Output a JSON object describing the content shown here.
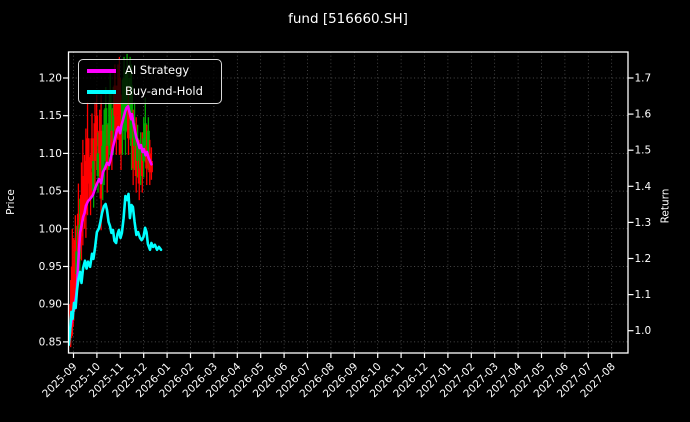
{
  "chart_data": {
    "type": "candlestick+line",
    "title": "fund [516660.SH]",
    "x_axis": {
      "unit": "month",
      "tick_labels": [
        "2025-09",
        "2025-10",
        "2025-11",
        "2025-12",
        "2026-01",
        "2026-02",
        "2026-03",
        "2026-04",
        "2026-05",
        "2026-06",
        "2026-07",
        "2026-08",
        "2026-09",
        "2026-10",
        "2026-11",
        "2026-12",
        "2027-01",
        "2027-02",
        "2027-03",
        "2027-04",
        "2027-05",
        "2027-06",
        "2027-07",
        "2027-08"
      ]
    },
    "left_axis": {
      "label": "Price",
      "tick_values": [
        0.85,
        0.9,
        0.95,
        1.0,
        1.05,
        1.1,
        1.15,
        1.2
      ],
      "tick_labels": [
        "0.85",
        "0.90",
        "0.95",
        "1.00",
        "1.05",
        "1.10",
        "1.15",
        "1.20"
      ],
      "range": [
        0.834,
        1.235
      ]
    },
    "right_axis": {
      "label": "Return",
      "tick_values": [
        1.0,
        1.1,
        1.2,
        1.3,
        1.4,
        1.5,
        1.6,
        1.7
      ],
      "tick_labels": [
        "1.0",
        "1.1",
        "1.2",
        "1.3",
        "1.4",
        "1.5",
        "1.6",
        "1.7"
      ],
      "range": [
        0.918,
        1.772
      ]
    },
    "grid": true,
    "legend": [
      {
        "label": "AI Strategy",
        "color": "#ff00ff"
      },
      {
        "label": "Buy-and-Hold",
        "color": "#00ffff"
      }
    ],
    "series": [
      {
        "name": "AI Strategy",
        "axis": "right",
        "color": "#ff00ff",
        "width": 2.6,
        "points": [
          [
            -0.2,
            0.969
          ],
          [
            -0.15,
            1.002
          ],
          [
            -0.06,
            1.036
          ],
          [
            0.02,
            1.063
          ],
          [
            0.11,
            1.096
          ],
          [
            0.15,
            1.119
          ],
          [
            0.19,
            1.174
          ],
          [
            0.24,
            1.229
          ],
          [
            0.28,
            1.271
          ],
          [
            0.34,
            1.29
          ],
          [
            0.41,
            1.315
          ],
          [
            0.47,
            1.326
          ],
          [
            0.53,
            1.346
          ],
          [
            0.62,
            1.359
          ],
          [
            0.71,
            1.365
          ],
          [
            0.83,
            1.376
          ],
          [
            0.96,
            1.401
          ],
          [
            1.09,
            1.42
          ],
          [
            1.18,
            1.409
          ],
          [
            1.26,
            1.44
          ],
          [
            1.35,
            1.451
          ],
          [
            1.43,
            1.465
          ],
          [
            1.52,
            1.459
          ],
          [
            1.6,
            1.478
          ],
          [
            1.69,
            1.509
          ],
          [
            1.77,
            1.531
          ],
          [
            1.86,
            1.556
          ],
          [
            1.92,
            1.564
          ],
          [
            1.99,
            1.547
          ],
          [
            2.05,
            1.57
          ],
          [
            2.12,
            1.586
          ],
          [
            2.2,
            1.606
          ],
          [
            2.26,
            1.617
          ],
          [
            2.33,
            1.622
          ],
          [
            2.39,
            1.606
          ],
          [
            2.46,
            1.586
          ],
          [
            2.5,
            1.6
          ],
          [
            2.56,
            1.575
          ],
          [
            2.63,
            1.553
          ],
          [
            2.69,
            1.534
          ],
          [
            2.76,
            1.52
          ],
          [
            2.82,
            1.506
          ],
          [
            2.88,
            1.514
          ],
          [
            2.95,
            1.495
          ],
          [
            3.01,
            1.503
          ],
          [
            3.08,
            1.486
          ],
          [
            3.14,
            1.495
          ],
          [
            3.21,
            1.478
          ],
          [
            3.27,
            1.47
          ],
          [
            3.33,
            1.461
          ]
        ]
      },
      {
        "name": "Buy-and-Hold",
        "axis": "right",
        "color": "#00ffff",
        "width": 2.6,
        "points": [
          [
            -0.2,
            0.961
          ],
          [
            -0.15,
            0.997
          ],
          [
            -0.09,
            1.052
          ],
          [
            -0.04,
            1.033
          ],
          [
            0.02,
            1.077
          ],
          [
            0.09,
            1.063
          ],
          [
            0.15,
            1.113
          ],
          [
            0.21,
            1.143
          ],
          [
            0.28,
            1.163
          ],
          [
            0.34,
            1.132
          ],
          [
            0.41,
            1.174
          ],
          [
            0.49,
            1.194
          ],
          [
            0.56,
            1.172
          ],
          [
            0.62,
            1.191
          ],
          [
            0.71,
            1.177
          ],
          [
            0.79,
            1.213
          ],
          [
            0.85,
            1.199
          ],
          [
            0.92,
            1.229
          ],
          [
            1.0,
            1.273
          ],
          [
            1.09,
            1.284
          ],
          [
            1.15,
            1.301
          ],
          [
            1.22,
            1.326
          ],
          [
            1.3,
            1.345
          ],
          [
            1.37,
            1.351
          ],
          [
            1.43,
            1.334
          ],
          [
            1.5,
            1.301
          ],
          [
            1.56,
            1.29
          ],
          [
            1.62,
            1.271
          ],
          [
            1.69,
            1.279
          ],
          [
            1.75,
            1.249
          ],
          [
            1.82,
            1.243
          ],
          [
            1.88,
            1.268
          ],
          [
            1.94,
            1.279
          ],
          [
            2.01,
            1.257
          ],
          [
            2.07,
            1.271
          ],
          [
            2.14,
            1.312
          ],
          [
            2.22,
            1.373
          ],
          [
            2.29,
            1.362
          ],
          [
            2.35,
            1.379
          ],
          [
            2.41,
            1.312
          ],
          [
            2.48,
            1.348
          ],
          [
            2.54,
            1.343
          ],
          [
            2.61,
            1.301
          ],
          [
            2.69,
            1.265
          ],
          [
            2.76,
            1.273
          ],
          [
            2.84,
            1.257
          ],
          [
            2.91,
            1.251
          ],
          [
            2.99,
            1.26
          ],
          [
            3.06,
            1.285
          ],
          [
            3.12,
            1.273
          ],
          [
            3.18,
            1.24
          ],
          [
            3.27,
            1.224
          ],
          [
            3.33,
            1.243
          ],
          [
            3.4,
            1.232
          ],
          [
            3.48,
            1.238
          ],
          [
            3.57,
            1.224
          ],
          [
            3.65,
            1.232
          ],
          [
            3.74,
            1.224
          ]
        ]
      }
    ],
    "candles": {
      "axis": "left",
      "up_color": "#00aa00",
      "down_color": "#ff0000",
      "note": "entries: [x_months, low, body_low, body_high, high, direction]",
      "ohlc": [
        [
          -0.12,
          0.843,
          0.855,
          0.9,
          0.932,
          "r"
        ],
        [
          -0.05,
          0.858,
          0.87,
          0.95,
          1.0,
          "r"
        ],
        [
          0.01,
          0.878,
          0.89,
          0.955,
          0.988,
          "r"
        ],
        [
          0.08,
          0.9,
          0.93,
          0.985,
          1.018,
          "r"
        ],
        [
          0.14,
          0.92,
          0.94,
          0.97,
          1.004,
          "g"
        ],
        [
          0.21,
          0.948,
          0.97,
          1.02,
          1.06,
          "r"
        ],
        [
          0.27,
          0.93,
          0.96,
          1.005,
          1.04,
          "g"
        ],
        [
          0.34,
          0.958,
          0.99,
          1.045,
          1.088,
          "r"
        ],
        [
          0.4,
          0.978,
          1.01,
          1.07,
          1.118,
          "r"
        ],
        [
          0.47,
          1.0,
          1.03,
          1.07,
          1.098,
          "r"
        ],
        [
          0.53,
          0.988,
          1.02,
          1.09,
          1.133,
          "r"
        ],
        [
          0.6,
          1.018,
          1.06,
          1.12,
          1.168,
          "r"
        ],
        [
          0.66,
          1.038,
          1.06,
          1.095,
          1.12,
          "r"
        ],
        [
          0.73,
          1.018,
          1.04,
          1.075,
          1.098,
          "r"
        ],
        [
          0.79,
          1.048,
          1.08,
          1.12,
          1.153,
          "r"
        ],
        [
          0.86,
          1.028,
          1.05,
          1.09,
          1.118,
          "g"
        ],
        [
          0.92,
          1.058,
          1.09,
          1.14,
          1.168,
          "r"
        ],
        [
          0.99,
          1.078,
          1.11,
          1.15,
          1.178,
          "r"
        ],
        [
          1.05,
          1.048,
          1.07,
          1.1,
          1.128,
          "g"
        ],
        [
          1.12,
          1.068,
          1.1,
          1.13,
          1.158,
          "r"
        ],
        [
          1.18,
          0.998,
          1.04,
          1.13,
          1.178,
          "r"
        ],
        [
          1.25,
          1.038,
          1.07,
          1.11,
          1.138,
          "g"
        ],
        [
          1.31,
          1.058,
          1.09,
          1.13,
          1.158,
          "g"
        ],
        [
          1.38,
          1.078,
          1.11,
          1.16,
          1.188,
          "g"
        ],
        [
          1.44,
          1.048,
          1.08,
          1.11,
          1.138,
          "r"
        ],
        [
          1.51,
          1.078,
          1.11,
          1.14,
          1.168,
          "g"
        ],
        [
          1.57,
          1.098,
          1.13,
          1.18,
          1.208,
          "g"
        ],
        [
          1.64,
          1.078,
          1.1,
          1.13,
          1.158,
          "r"
        ],
        [
          1.7,
          1.098,
          1.13,
          1.16,
          1.188,
          "g"
        ],
        [
          1.77,
          1.118,
          1.15,
          1.19,
          1.218,
          "r"
        ],
        [
          1.83,
          1.098,
          1.12,
          1.15,
          1.178,
          "r"
        ],
        [
          1.9,
          1.118,
          1.15,
          1.19,
          1.218,
          "r"
        ],
        [
          1.96,
          1.098,
          1.13,
          1.2,
          1.228,
          "r"
        ],
        [
          2.03,
          1.078,
          1.1,
          1.15,
          1.178,
          "r"
        ],
        [
          2.09,
          1.098,
          1.13,
          1.17,
          1.198,
          "g"
        ],
        [
          2.16,
          1.118,
          1.15,
          1.2,
          1.228,
          "g"
        ],
        [
          2.22,
          1.098,
          1.13,
          1.17,
          1.208,
          "g"
        ],
        [
          2.29,
          1.128,
          1.16,
          1.21,
          1.232,
          "g"
        ],
        [
          2.35,
          1.098,
          1.12,
          1.16,
          1.188,
          "r"
        ],
        [
          2.42,
          1.118,
          1.15,
          1.2,
          1.228,
          "g"
        ],
        [
          2.48,
          1.078,
          1.11,
          1.19,
          1.218,
          "g"
        ],
        [
          2.55,
          1.058,
          1.08,
          1.12,
          1.158,
          "r"
        ],
        [
          2.61,
          1.078,
          1.11,
          1.14,
          1.168,
          "g"
        ],
        [
          2.68,
          1.048,
          1.07,
          1.11,
          1.148,
          "r"
        ],
        [
          2.74,
          1.068,
          1.09,
          1.12,
          1.138,
          "g"
        ],
        [
          2.81,
          1.038,
          1.06,
          1.09,
          1.118,
          "r"
        ],
        [
          2.87,
          1.058,
          1.08,
          1.11,
          1.128,
          "g"
        ],
        [
          2.94,
          1.048,
          1.07,
          1.1,
          1.128,
          "r"
        ],
        [
          3.0,
          1.068,
          1.09,
          1.12,
          1.148,
          "g"
        ],
        [
          3.07,
          1.088,
          1.11,
          1.14,
          1.174,
          "g"
        ],
        [
          3.13,
          1.058,
          1.08,
          1.11,
          1.138,
          "r"
        ],
        [
          3.2,
          1.078,
          1.1,
          1.13,
          1.148,
          "g"
        ],
        [
          3.26,
          1.058,
          1.075,
          1.1,
          1.118,
          "r"
        ],
        [
          3.33,
          1.065,
          1.075,
          1.09,
          1.108,
          "r"
        ]
      ]
    },
    "colors": {
      "background": "#000000",
      "text": "#ffffff",
      "grid": "#ffffff",
      "spine": "#ffffff"
    }
  }
}
